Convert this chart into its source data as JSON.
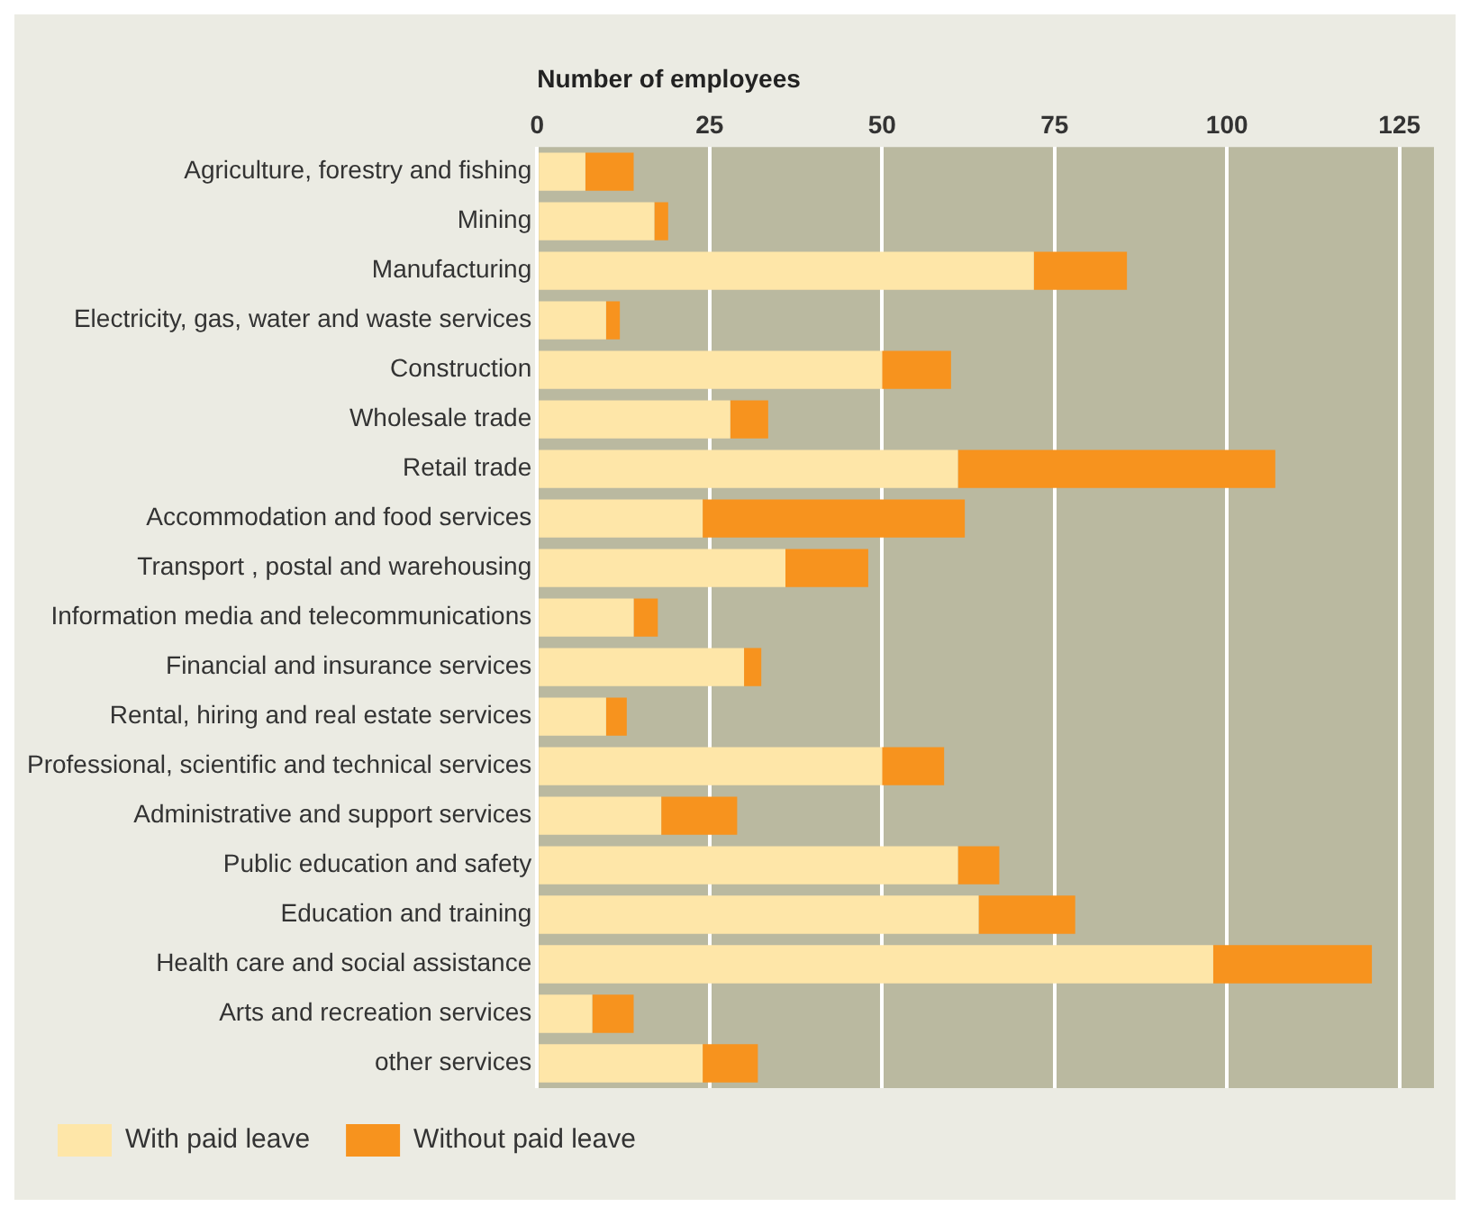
{
  "chart_data": {
    "type": "bar",
    "orientation": "horizontal",
    "stacked": true,
    "xlabel": "Number of employees",
    "categories": [
      "Agriculture, forestry and fishing",
      "Mining",
      "Manufacturing",
      "Electricity, gas, water and waste services",
      "Construction",
      "Wholesale trade",
      "Retail trade",
      "Accommodation and food services",
      "Transport , postal and warehousing",
      "Information media and telecommunications",
      "Financial and insurance services",
      "Rental, hiring and real estate services",
      "Professional, scientific and technical services",
      "Administrative and support services",
      "Public education and safety",
      "Education and training",
      "Health care and social assistance",
      "Arts and recreation services",
      "other services"
    ],
    "series": [
      {
        "name": "With paid leave",
        "color": "#fee6a8",
        "values": [
          7,
          17,
          72,
          10,
          50,
          28,
          61,
          24,
          36,
          14,
          30,
          10,
          50,
          18,
          61,
          64,
          98,
          8,
          24
        ]
      },
      {
        "name": "Without paid leave",
        "color": "#f7931e",
        "values": [
          7,
          2,
          13.5,
          2,
          10,
          5.5,
          46,
          38,
          12,
          3.5,
          2.5,
          3,
          9,
          11,
          6,
          14,
          23,
          6,
          8
        ]
      }
    ],
    "xlim": [
      0,
      130
    ],
    "xticks": [
      0,
      25,
      50,
      75,
      100,
      125
    ],
    "grid": "x",
    "legend": "bottom left"
  }
}
